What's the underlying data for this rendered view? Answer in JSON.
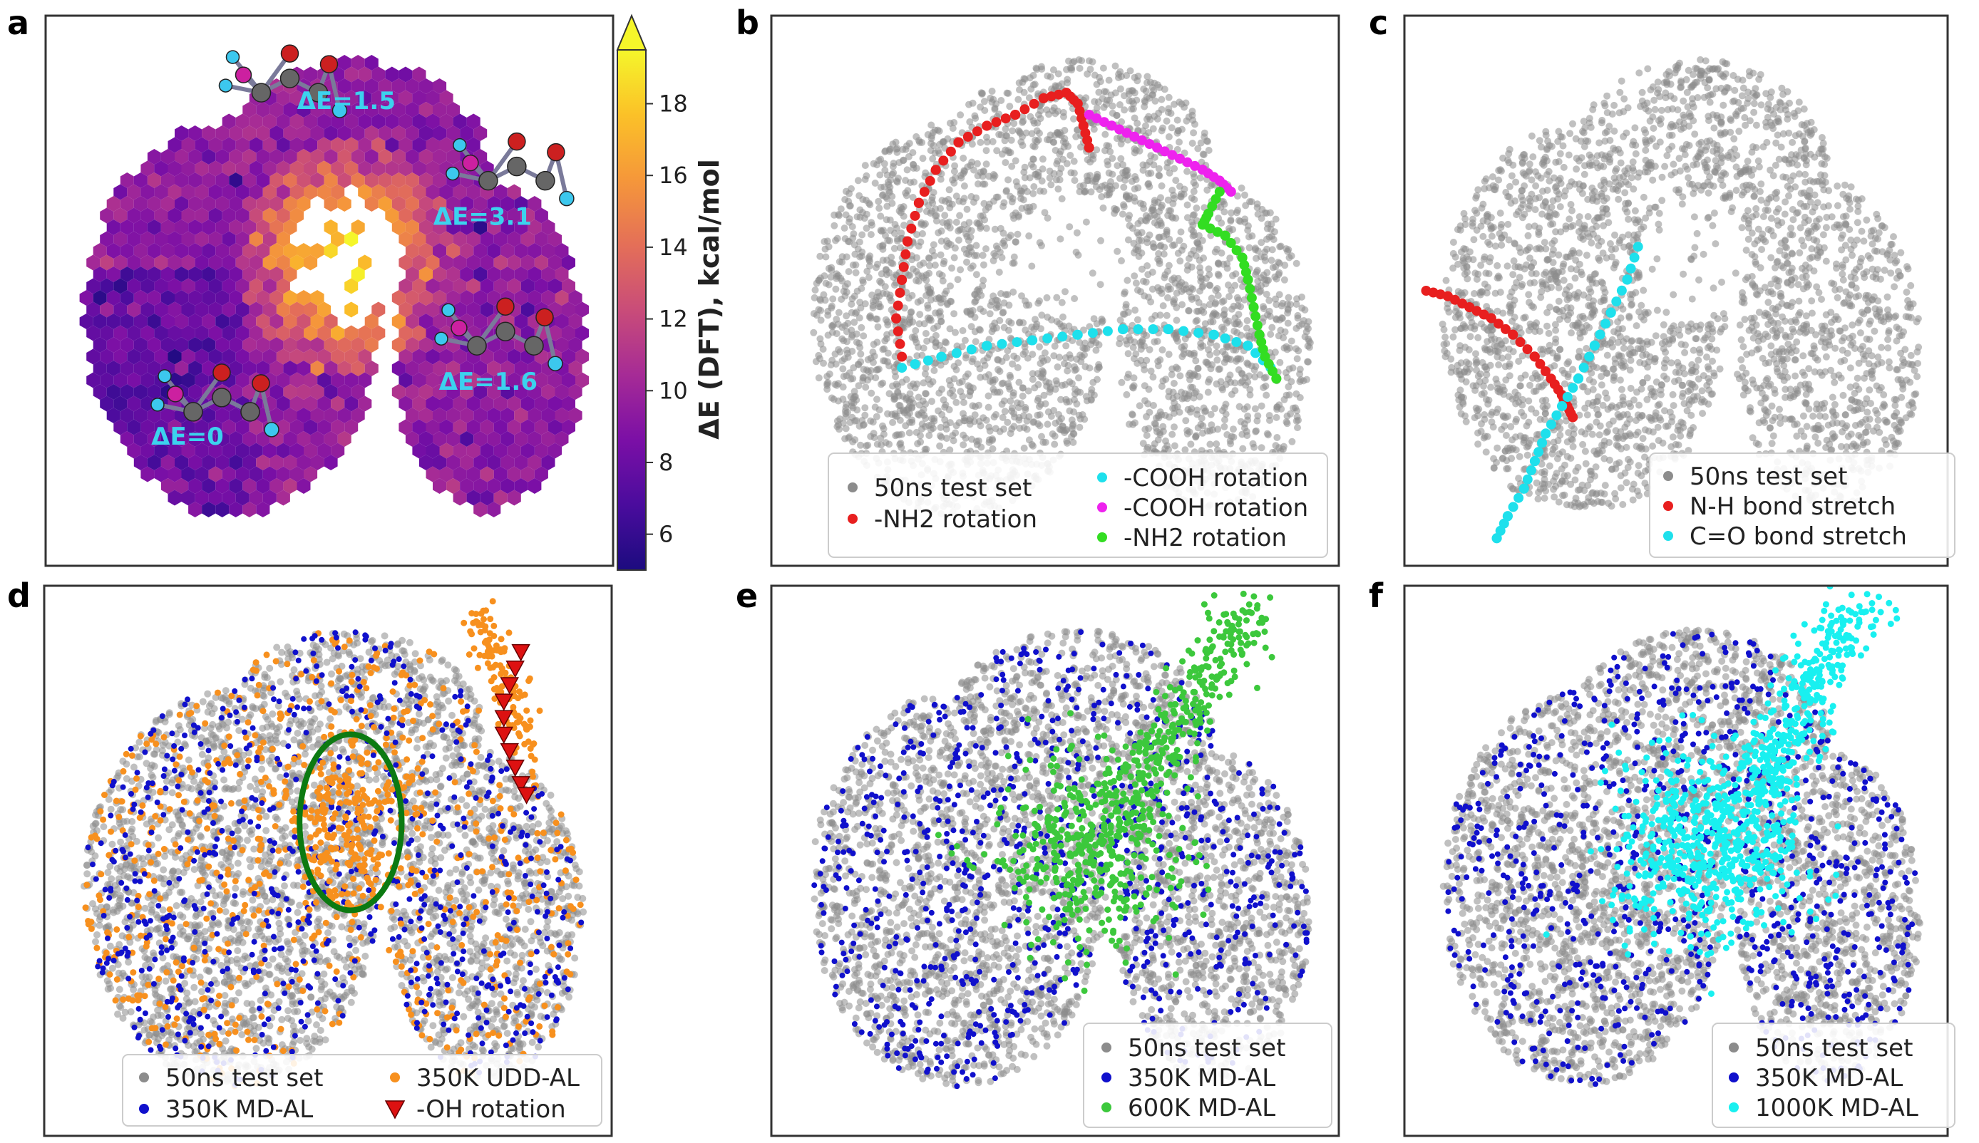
{
  "chart_data": [
    {
      "id": "a",
      "type": "heatmap",
      "panel_label": "a",
      "colorbar": {
        "label": "ΔE (DFT), kcal/mol",
        "ticks": [
          "6",
          "8",
          "10",
          "12",
          "14",
          "16",
          "18"
        ],
        "tick_values": [
          6,
          8,
          10,
          12,
          14,
          16,
          18
        ],
        "range": [
          5,
          19.5
        ],
        "extend": "max",
        "colormap": [
          "#1c0b7f",
          "#4a0c9d",
          "#7b0fa6",
          "#a62b96",
          "#c94c79",
          "#e46f58",
          "#f5973a",
          "#fbc128",
          "#f5f62a"
        ]
      },
      "annotations": [
        {
          "text": "ΔE=1.5",
          "x": 0.53,
          "y": 0.83
        },
        {
          "text": "ΔE=3.1",
          "x": 0.77,
          "y": 0.62
        },
        {
          "text": "ΔE=1.6",
          "x": 0.78,
          "y": 0.32
        },
        {
          "text": "ΔE=0",
          "x": 0.25,
          "y": 0.22
        }
      ]
    },
    {
      "id": "b",
      "type": "scatter",
      "panel_label": "b",
      "legend_location": "lower right",
      "series": [
        {
          "name": "50ns test set",
          "color": "#8c8c8c",
          "role": "background"
        },
        {
          "name": "-NH2 rotation",
          "color": "#e81f1f",
          "points": [
            [
              0.23,
              0.38
            ],
            [
              0.22,
              0.45
            ],
            [
              0.23,
              0.52
            ],
            [
              0.24,
              0.59
            ],
            [
              0.26,
              0.66
            ],
            [
              0.29,
              0.72
            ],
            [
              0.33,
              0.77
            ],
            [
              0.38,
              0.8
            ],
            [
              0.43,
              0.82
            ],
            [
              0.48,
              0.85
            ],
            [
              0.52,
              0.86
            ],
            [
              0.54,
              0.84
            ],
            [
              0.55,
              0.8
            ],
            [
              0.56,
              0.76
            ]
          ]
        },
        {
          "name": "-COOH rotation",
          "color": "#1ee0ec",
          "points": [
            [
              0.23,
              0.36
            ],
            [
              0.3,
              0.38
            ],
            [
              0.38,
              0.4
            ],
            [
              0.46,
              0.41
            ],
            [
              0.54,
              0.42
            ],
            [
              0.62,
              0.43
            ],
            [
              0.7,
              0.43
            ],
            [
              0.78,
              0.42
            ],
            [
              0.84,
              0.4
            ],
            [
              0.88,
              0.36
            ]
          ]
        },
        {
          "name": "-COOH rotation",
          "color": "#ee22ee",
          "points": [
            [
              0.56,
              0.82
            ],
            [
              0.6,
              0.8
            ],
            [
              0.64,
              0.78
            ],
            [
              0.68,
              0.76
            ],
            [
              0.72,
              0.74
            ],
            [
              0.76,
              0.72
            ],
            [
              0.79,
              0.7
            ],
            [
              0.81,
              0.68
            ]
          ]
        },
        {
          "name": "-NH2 rotation",
          "color": "#33dd22",
          "points": [
            [
              0.79,
              0.68
            ],
            [
              0.77,
              0.64
            ],
            [
              0.76,
              0.62
            ],
            [
              0.8,
              0.6
            ],
            [
              0.83,
              0.56
            ],
            [
              0.84,
              0.52
            ],
            [
              0.85,
              0.47
            ],
            [
              0.86,
              0.42
            ],
            [
              0.87,
              0.38
            ],
            [
              0.89,
              0.34
            ]
          ]
        }
      ],
      "legend": [
        {
          "label": "50ns test set",
          "color": "#8c8c8c",
          "marker": "circle"
        },
        {
          "label": "-NH2 rotation",
          "color": "#e81f1f",
          "marker": "circle"
        },
        {
          "label": "-COOH rotation",
          "color": "#1ee0ec",
          "marker": "circle"
        },
        {
          "label": "-COOH rotation",
          "color": "#ee22ee",
          "marker": "circle"
        },
        {
          "label": "-NH2 rotation",
          "color": "#33dd22",
          "marker": "circle"
        }
      ]
    },
    {
      "id": "c",
      "type": "scatter",
      "panel_label": "c",
      "legend_location": "lower right",
      "series": [
        {
          "name": "50ns test set",
          "color": "#8c8c8c",
          "role": "background"
        },
        {
          "name": "N-H bond stretch",
          "color": "#e81f1f",
          "points": [
            [
              0.04,
              0.5
            ],
            [
              0.08,
              0.49
            ],
            [
              0.12,
              0.47
            ],
            [
              0.16,
              0.45
            ],
            [
              0.2,
              0.42
            ],
            [
              0.24,
              0.38
            ],
            [
              0.27,
              0.34
            ],
            [
              0.29,
              0.31
            ],
            [
              0.3,
              0.29
            ],
            [
              0.31,
              0.27
            ]
          ]
        },
        {
          "name": "C=O bond stretch",
          "color": "#1ee0ec",
          "points": [
            [
              0.43,
              0.58
            ],
            [
              0.41,
              0.52
            ],
            [
              0.38,
              0.46
            ],
            [
              0.35,
              0.4
            ],
            [
              0.32,
              0.34
            ],
            [
              0.29,
              0.29
            ],
            [
              0.26,
              0.24
            ],
            [
              0.24,
              0.19
            ],
            [
              0.22,
              0.14
            ],
            [
              0.19,
              0.09
            ],
            [
              0.17,
              0.05
            ]
          ]
        }
      ],
      "legend": [
        {
          "label": "50ns test set",
          "color": "#8c8c8c",
          "marker": "circle"
        },
        {
          "label": "N-H bond stretch",
          "color": "#e81f1f",
          "marker": "circle"
        },
        {
          "label": "C=O bond stretch",
          "color": "#1ee0ec",
          "marker": "circle"
        }
      ]
    },
    {
      "id": "d",
      "type": "scatter",
      "panel_label": "d",
      "legend_location": "lower center",
      "series": [
        {
          "name": "50ns test set",
          "color": "#8c8c8c",
          "role": "background"
        },
        {
          "name": "350K MD-AL",
          "color": "#1010cc",
          "role": "spread"
        },
        {
          "name": "350K UDD-AL",
          "color": "#f7901e",
          "role": "spread-center"
        },
        {
          "name": "-OH rotation",
          "color": "#dd1111",
          "marker": "triangle_down",
          "points": [
            [
              0.84,
              0.88
            ],
            [
              0.83,
              0.85
            ],
            [
              0.82,
              0.82
            ],
            [
              0.81,
              0.79
            ],
            [
              0.81,
              0.76
            ],
            [
              0.81,
              0.73
            ],
            [
              0.82,
              0.7
            ],
            [
              0.83,
              0.67
            ],
            [
              0.84,
              0.64
            ],
            [
              0.85,
              0.62
            ]
          ]
        }
      ],
      "highlight_ellipse": {
        "cx": 0.54,
        "cy": 0.57,
        "rx": 0.09,
        "ry": 0.16,
        "color": "#0c7a12"
      },
      "legend": [
        {
          "label": "50ns test set",
          "color": "#8c8c8c",
          "marker": "circle"
        },
        {
          "label": "350K MD-AL",
          "color": "#1010cc",
          "marker": "circle"
        },
        {
          "label": "350K UDD-AL",
          "color": "#f7901e",
          "marker": "circle"
        },
        {
          "label": "-OH rotation",
          "color": "#dd1111",
          "marker": "triangle_down"
        }
      ]
    },
    {
      "id": "e",
      "type": "scatter",
      "panel_label": "e",
      "legend_location": "lower right",
      "series": [
        {
          "name": "50ns test set",
          "color": "#8c8c8c",
          "role": "background"
        },
        {
          "name": "350K MD-AL",
          "color": "#1010cc",
          "role": "spread"
        },
        {
          "name": "600K MD-AL",
          "color": "#3cc83c",
          "role": "center-plume"
        }
      ],
      "legend": [
        {
          "label": "50ns test set",
          "color": "#8c8c8c",
          "marker": "circle"
        },
        {
          "label": "350K MD-AL",
          "color": "#1010cc",
          "marker": "circle"
        },
        {
          "label": "600K MD-AL",
          "color": "#3cc83c",
          "marker": "circle"
        }
      ]
    },
    {
      "id": "f",
      "type": "scatter",
      "panel_label": "f",
      "legend_location": "lower right",
      "series": [
        {
          "name": "50ns test set",
          "color": "#8c8c8c",
          "role": "background"
        },
        {
          "name": "350K MD-AL",
          "color": "#1010cc",
          "role": "spread"
        },
        {
          "name": "1000K MD-AL",
          "color": "#19f0f0",
          "role": "center-plume"
        }
      ],
      "legend": [
        {
          "label": "50ns test set",
          "color": "#8c8c8c",
          "marker": "circle"
        },
        {
          "label": "350K MD-AL",
          "color": "#1010cc",
          "marker": "circle"
        },
        {
          "label": "1000K MD-AL",
          "color": "#19f0f0",
          "marker": "circle"
        }
      ]
    }
  ]
}
